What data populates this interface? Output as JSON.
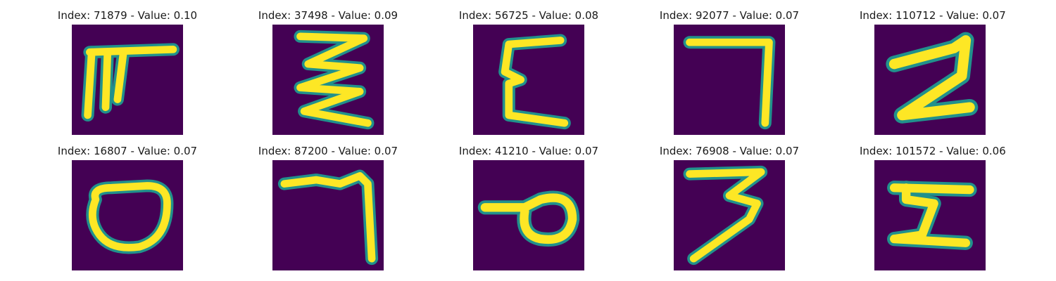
{
  "colors": {
    "background": "#440154",
    "stroke_edge": "#21918c",
    "stroke_core": "#fde725"
  },
  "panels": [
    {
      "index_label": "Index: 71879 - Value: 0.10",
      "glyph": "glyph-71879"
    },
    {
      "index_label": "Index: 37498 - Value: 0.09",
      "glyph": "glyph-37498"
    },
    {
      "index_label": "Index: 56725 - Value: 0.08",
      "glyph": "glyph-56725"
    },
    {
      "index_label": "Index: 92077 - Value: 0.07",
      "glyph": "glyph-92077"
    },
    {
      "index_label": "Index: 110712 - Value: 0.07",
      "glyph": "glyph-110712"
    },
    {
      "index_label": "Index: 16807 - Value: 0.07",
      "glyph": "glyph-16807"
    },
    {
      "index_label": "Index: 87200 - Value: 0.07",
      "glyph": "glyph-87200"
    },
    {
      "index_label": "Index: 41210 - Value: 0.07",
      "glyph": "glyph-41210"
    },
    {
      "index_label": "Index: 76908 - Value: 0.07",
      "glyph": "glyph-76908"
    },
    {
      "index_label": "Index: 101572 - Value: 0.06",
      "glyph": "glyph-101572"
    }
  ]
}
